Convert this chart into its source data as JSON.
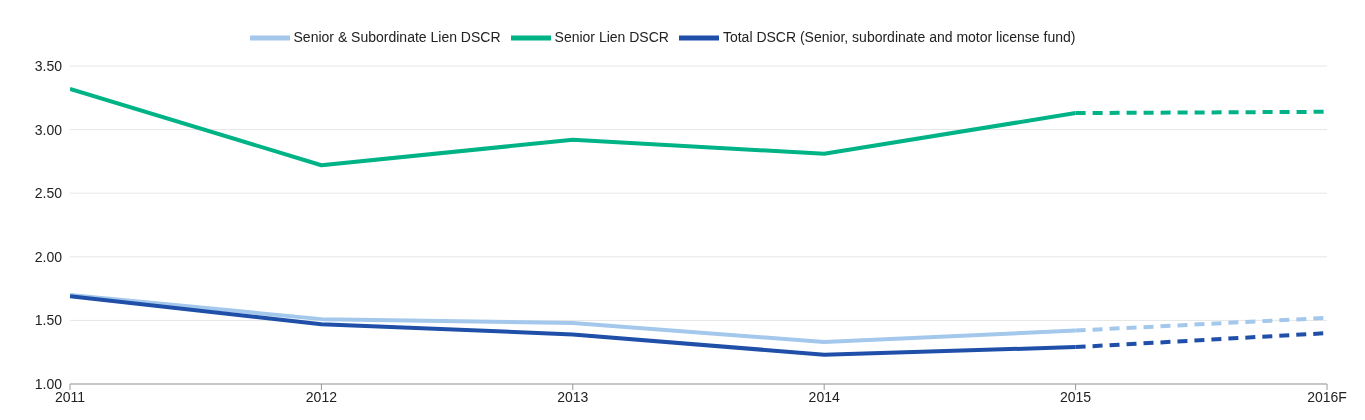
{
  "chart_data": {
    "type": "line",
    "categories": [
      "2011",
      "2012",
      "2013",
      "2014",
      "2015",
      "2016F"
    ],
    "series": [
      {
        "name": "Senior Lien DSCR",
        "color": "#00b386",
        "values": [
          3.32,
          2.72,
          2.92,
          2.81,
          3.13,
          null
        ]
      },
      {
        "name": "Senior & Subordinate Lien DSCR",
        "color": "#a3c8eb",
        "values": [
          1.7,
          1.51,
          1.48,
          1.33,
          1.42,
          null
        ]
      },
      {
        "name": "Total DSCR (Senior, subordinate and motor license fund)",
        "color": "#1f4fa8",
        "values": [
          1.69,
          1.47,
          1.39,
          1.23,
          1.29,
          null
        ]
      },
      {
        "color": "#00b386",
        "line_style": "dashed",
        "values": [
          null,
          null,
          null,
          null,
          3.13,
          3.14
        ]
      },
      {
        "color": "#a3c8eb",
        "line_style": "dashed",
        "values": [
          null,
          null,
          null,
          null,
          1.42,
          1.52
        ]
      },
      {
        "color": "#1f4fa8",
        "line_style": "dashed",
        "values": [
          null,
          null,
          null,
          null,
          1.29,
          1.4
        ]
      }
    ],
    "ylim": [
      1,
      3.5
    ],
    "yticks": [
      {
        "value": 1,
        "label": "1.00"
      },
      {
        "value": 1.5,
        "label": "1.50"
      },
      {
        "value": 2,
        "label": "2.00"
      },
      {
        "value": 2.5,
        "label": "2.50"
      },
      {
        "value": 3,
        "label": "3.00"
      },
      {
        "value": 3.5,
        "label": "3.50"
      }
    ],
    "grid": "y",
    "legend": "top",
    "line_style": "solid",
    "marker": "none"
  }
}
